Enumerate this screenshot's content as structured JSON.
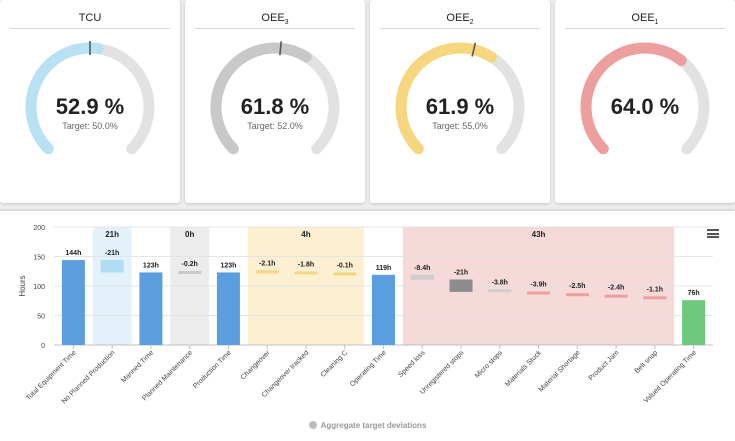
{
  "gauges": [
    {
      "title": "TCU",
      "sub": "",
      "value_text": "52.9 %",
      "target_text": "Target: 50.0%",
      "value": 52.9,
      "target": 50.0,
      "color": "#b8e1f4",
      "marker": true
    },
    {
      "title": "OEE",
      "sub": "3",
      "value_text": "61.8 %",
      "target_text": "Target: 52.0%",
      "value": 61.8,
      "target": 52.0,
      "color": "#c8c8c8",
      "marker": true
    },
    {
      "title": "OEE",
      "sub": "2",
      "value_text": "61.9 %",
      "target_text": "Target: 55.0%",
      "value": 61.9,
      "target": 55.0,
      "color": "#f6d77d",
      "marker": true
    },
    {
      "title": "OEE",
      "sub": "1",
      "value_text": "64.0 %",
      "target_text": "",
      "value": 64.0,
      "target": null,
      "color": "#ec9f9c",
      "marker": false
    }
  ],
  "chart_data": {
    "type": "bar",
    "ylabel": "Hours",
    "ylim": [
      0,
      200
    ],
    "yticks": [
      0,
      50,
      100,
      150,
      200
    ],
    "legend": "Aggregate target deviations",
    "bands": [
      {
        "label": "21h",
        "from": 1,
        "to": 1,
        "color": "#e3f2fa"
      },
      {
        "label": "0h",
        "from": 3,
        "to": 3,
        "color": "#ececec"
      },
      {
        "label": "4h",
        "from": 5,
        "to": 7,
        "color": "#fcefd2"
      },
      {
        "label": "43h",
        "from": 9,
        "to": 15,
        "color": "#f6d9d9"
      }
    ],
    "bars": [
      {
        "category": "Total Equipment Time",
        "kind": "total",
        "value": 144,
        "label": "144h",
        "color": "#5b9ee0"
      },
      {
        "category": "No Planned Production",
        "kind": "delta",
        "from": 144,
        "to": 123,
        "label": "-21h",
        "color": "#b0ddf3"
      },
      {
        "category": "Manned Time",
        "kind": "total",
        "value": 123,
        "label": "123h",
        "color": "#5b9ee0"
      },
      {
        "category": "Planned Maintenance",
        "kind": "delta",
        "from": 123,
        "to": 122.8,
        "label": "-0.2h",
        "color": "#c9c9c9"
      },
      {
        "category": "Production Time",
        "kind": "total",
        "value": 123,
        "label": "123h",
        "color": "#5b9ee0"
      },
      {
        "category": "Changeover",
        "kind": "delta",
        "from": 125,
        "to": 122.9,
        "label": "-2.1h",
        "color": "#f6d77d"
      },
      {
        "category": "Changeover tracked",
        "kind": "delta",
        "from": 123,
        "to": 121.2,
        "label": "-1.8h",
        "color": "#f6d77d"
      },
      {
        "category": "Cleaning C",
        "kind": "delta",
        "from": 120.5,
        "to": 120.4,
        "label": "-0.1h",
        "color": "#f6d77d"
      },
      {
        "category": "Operating Time",
        "kind": "total",
        "value": 119,
        "label": "119h",
        "color": "#5b9ee0"
      },
      {
        "category": "Speed loss",
        "kind": "delta",
        "from": 119,
        "to": 110.6,
        "label": "-8.4h",
        "color": "#cdcdcd"
      },
      {
        "category": "Unregistered stops",
        "kind": "delta",
        "from": 111,
        "to": 90,
        "label": "-21h",
        "color": "#8d8d8d"
      },
      {
        "category": "Micro stops",
        "kind": "delta",
        "from": 93.8,
        "to": 90,
        "label": "-3.8h",
        "color": "#cdcdcd"
      },
      {
        "category": "Materials Stuck",
        "kind": "delta",
        "from": 90,
        "to": 86.1,
        "label": "-3.9h",
        "color": "#ec9f9c"
      },
      {
        "category": "Material Shortage",
        "kind": "delta",
        "from": 86.5,
        "to": 84,
        "label": "-2.5h",
        "color": "#ec9f9c"
      },
      {
        "category": "Product Jam",
        "kind": "delta",
        "from": 84,
        "to": 81.6,
        "label": "-2.4h",
        "color": "#ec9f9c"
      },
      {
        "category": "Belt snap",
        "kind": "delta",
        "from": 80.5,
        "to": 79.4,
        "label": "-1.1h",
        "color": "#ec9f9c"
      },
      {
        "category": "Valued Operating Time",
        "kind": "total",
        "value": 76,
        "label": "76h",
        "color": "#6cc97e"
      }
    ]
  }
}
